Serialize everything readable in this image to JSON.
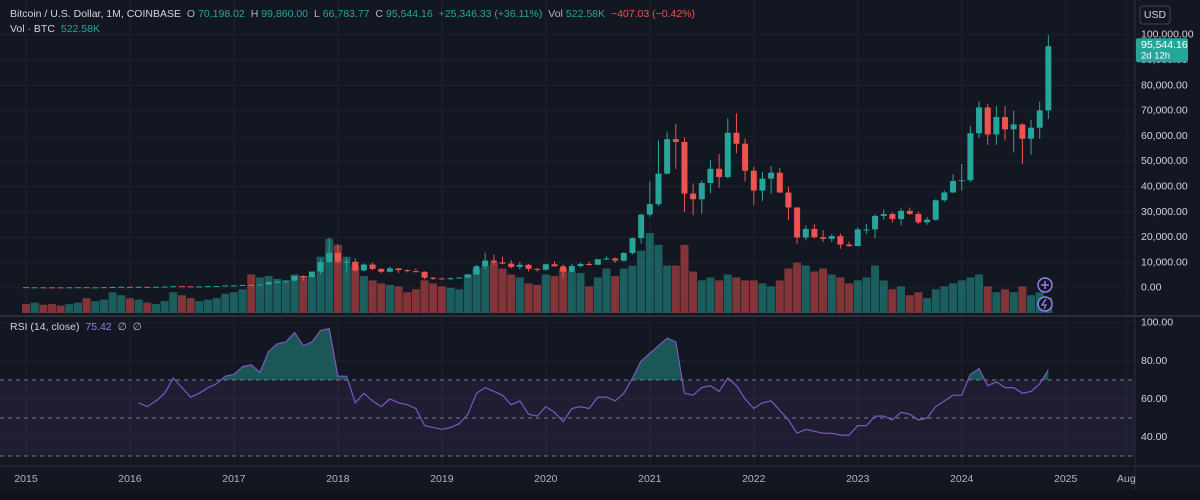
{
  "chart_data": {
    "type": "candlestick",
    "title": "Bitcoin / U.S. Dollar, 1M, COINBASE",
    "legend": {
      "ohlc": [
        {
          "key": "O",
          "value": "70,198.02"
        },
        {
          "key": "H",
          "value": "99,860.00"
        },
        {
          "key": "L",
          "value": "66,783.77"
        },
        {
          "key": "C",
          "value": "95,544.16"
        }
      ],
      "change": "+25,346.33 (+36.11%)",
      "vol_key": "Vol",
      "vol_value": "522.58K",
      "vol_change": "−407.03 (−0.42%)",
      "volume_title": "Vol · BTC",
      "volume_value": "522.58K"
    },
    "currency": "USD",
    "last_price_label": "95,544.16",
    "countdown": "2d 12h",
    "up_color": "#26a69a",
    "down_color": "#ef5350",
    "x": [
      "2015-01",
      "2015-02",
      "2015-03",
      "2015-04",
      "2015-05",
      "2015-06",
      "2015-07",
      "2015-08",
      "2015-09",
      "2015-10",
      "2015-11",
      "2015-12",
      "2016-01",
      "2016-02",
      "2016-03",
      "2016-04",
      "2016-05",
      "2016-06",
      "2016-07",
      "2016-08",
      "2016-09",
      "2016-10",
      "2016-11",
      "2016-12",
      "2017-01",
      "2017-02",
      "2017-03",
      "2017-04",
      "2017-05",
      "2017-06",
      "2017-07",
      "2017-08",
      "2017-09",
      "2017-10",
      "2017-11",
      "2017-12",
      "2018-01",
      "2018-02",
      "2018-03",
      "2018-04",
      "2018-05",
      "2018-06",
      "2018-07",
      "2018-08",
      "2018-09",
      "2018-10",
      "2018-11",
      "2018-12",
      "2019-01",
      "2019-02",
      "2019-03",
      "2019-04",
      "2019-05",
      "2019-06",
      "2019-07",
      "2019-08",
      "2019-09",
      "2019-10",
      "2019-11",
      "2019-12",
      "2020-01",
      "2020-02",
      "2020-03",
      "2020-04",
      "2020-05",
      "2020-06",
      "2020-07",
      "2020-08",
      "2020-09",
      "2020-10",
      "2020-11",
      "2020-12",
      "2021-01",
      "2021-02",
      "2021-03",
      "2021-04",
      "2021-05",
      "2021-06",
      "2021-07",
      "2021-08",
      "2021-09",
      "2021-10",
      "2021-11",
      "2021-12",
      "2022-01",
      "2022-02",
      "2022-03",
      "2022-04",
      "2022-05",
      "2022-06",
      "2022-07",
      "2022-08",
      "2022-09",
      "2022-10",
      "2022-11",
      "2022-12",
      "2023-01",
      "2023-02",
      "2023-03",
      "2023-04",
      "2023-05",
      "2023-06",
      "2023-07",
      "2023-08",
      "2023-09",
      "2023-10",
      "2023-11",
      "2023-12",
      "2024-01",
      "2024-02",
      "2024-03",
      "2024-04",
      "2024-05",
      "2024-06",
      "2024-07",
      "2024-08",
      "2024-09",
      "2024-10",
      "2024-11"
    ],
    "open": [
      320,
      217,
      254,
      244,
      236,
      230,
      263,
      284,
      230,
      236,
      314,
      378,
      430,
      368,
      437,
      416,
      448,
      531,
      673,
      624,
      575,
      609,
      698,
      742,
      963,
      970,
      1190,
      1080,
      1348,
      2300,
      2480,
      2875,
      4703,
      4338,
      6468,
      10233,
      13860,
      10265,
      10333,
      6928,
      9245,
      7500,
      6400,
      7730,
      7030,
      6630,
      6370,
      4040,
      3740,
      3460,
      3820,
      4100,
      5320,
      8570,
      10820,
      10090,
      9590,
      8300,
      9150,
      7550,
      7190,
      9350,
      8540,
      6420,
      8630,
      9450,
      9140,
      11350,
      11650,
      10780,
      13800,
      19700,
      28990,
      33110,
      45160,
      58800,
      57700,
      37300,
      35040,
      41460,
      47100,
      43820,
      61300,
      57000,
      46300,
      38480,
      43190,
      45540,
      37700,
      31790,
      19940,
      23300,
      20050,
      19420,
      20490,
      17160,
      16540,
      23130,
      23140,
      28470,
      29250,
      27200,
      30470,
      29230,
      25940,
      26970,
      34650,
      37720,
      42280,
      42580,
      61130,
      71330,
      60640,
      67530,
      62680,
      64620,
      58970,
      63330,
      70198.02
    ],
    "high": [
      320,
      265,
      300,
      261,
      247,
      268,
      315,
      284,
      244,
      333,
      495,
      465,
      462,
      443,
      439,
      467,
      553,
      780,
      704,
      625,
      617,
      738,
      752,
      980,
      1160,
      1210,
      1350,
      1365,
      2760,
      3000,
      2920,
      4750,
      5000,
      6470,
      11400,
      19890,
      17250,
      11790,
      11680,
      9760,
      9990,
      7780,
      8500,
      7760,
      7400,
      7680,
      6560,
      4310,
      4080,
      4200,
      4300,
      5620,
      9080,
      13870,
      13130,
      12330,
      10950,
      10370,
      9520,
      7880,
      9570,
      10500,
      9190,
      9460,
      10080,
      10400,
      11450,
      12470,
      12070,
      14100,
      19900,
      29300,
      42000,
      58350,
      61780,
      64900,
      59500,
      41330,
      42400,
      50500,
      52920,
      67000,
      69000,
      59100,
      47990,
      45800,
      48200,
      47450,
      40000,
      31900,
      24670,
      25200,
      22800,
      21100,
      21480,
      18400,
      23960,
      25250,
      29200,
      31000,
      29800,
      31450,
      31800,
      30180,
      28000,
      35000,
      38420,
      45000,
      48970,
      64000,
      73800,
      72800,
      71950,
      72000,
      70000,
      65100,
      66500,
      73600,
      99860
    ],
    "low": [
      152,
      212,
      237,
      215,
      228,
      220,
      254,
      199,
      225,
      236,
      309,
      350,
      352,
      366,
      394,
      414,
      435,
      522,
      615,
      464,
      592,
      603,
      690,
      740,
      752,
      920,
      890,
      1080,
      1400,
      2100,
      1840,
      2650,
      2970,
      4100,
      5500,
      10000,
      9050,
      6000,
      6440,
      6580,
      7000,
      5780,
      6070,
      5880,
      6120,
      6170,
      3450,
      3130,
      3350,
      3370,
      3730,
      4080,
      5320,
      7460,
      9070,
      9340,
      7700,
      7300,
      6520,
      6420,
      6860,
      8420,
      3800,
      6150,
      8130,
      8900,
      9010,
      11000,
      9880,
      10380,
      13200,
      17550,
      28130,
      32300,
      45000,
      47000,
      30000,
      28800,
      29280,
      37400,
      39600,
      43300,
      53250,
      42000,
      32900,
      34300,
      37200,
      37600,
      26700,
      17600,
      18780,
      19520,
      18150,
      18130,
      15480,
      16260,
      16500,
      21400,
      19550,
      26950,
      25850,
      24750,
      28860,
      25160,
      24920,
      26540,
      34100,
      37600,
      38500,
      41900,
      59200,
      56500,
      56550,
      58400,
      53500,
      49000,
      52550,
      58900,
      66783.77
    ],
    "close": [
      217,
      254,
      244,
      236,
      230,
      263,
      284,
      230,
      236,
      314,
      378,
      430,
      368,
      437,
      416,
      448,
      531,
      673,
      624,
      575,
      609,
      698,
      742,
      963,
      970,
      1190,
      1080,
      1348,
      2300,
      2480,
      2875,
      4703,
      4338,
      6468,
      10233,
      13860,
      10265,
      10333,
      6928,
      9245,
      7500,
      6400,
      7730,
      7030,
      6630,
      6370,
      4040,
      3740,
      3460,
      3820,
      4100,
      5320,
      8570,
      10820,
      10090,
      9590,
      8300,
      9150,
      7550,
      7190,
      9350,
      8540,
      6420,
      8630,
      9450,
      9140,
      11350,
      11650,
      10780,
      13800,
      19700,
      28990,
      33110,
      45160,
      58800,
      57700,
      37300,
      35040,
      41460,
      47100,
      43820,
      61300,
      57000,
      46300,
      38480,
      43190,
      45540,
      37700,
      31790,
      19940,
      23300,
      20050,
      19420,
      20490,
      17160,
      16540,
      23130,
      23140,
      28470,
      29250,
      27200,
      30470,
      29230,
      25940,
      26970,
      34650,
      37720,
      42280,
      42580,
      61130,
      71330,
      60640,
      67530,
      62680,
      64620,
      58970,
      63330,
      70200,
      95544.16
    ],
    "volume": [
      300,
      350,
      280,
      300,
      250,
      300,
      350,
      500,
      400,
      450,
      700,
      600,
      500,
      450,
      350,
      300,
      400,
      700,
      600,
      500,
      400,
      450,
      500,
      650,
      700,
      800,
      1300,
      1200,
      1250,
      1150,
      1100,
      1300,
      1250,
      1250,
      1900,
      2500,
      2300,
      1900,
      1600,
      1250,
      1100,
      1000,
      950,
      900,
      700,
      800,
      1100,
      1000,
      900,
      850,
      800,
      1300,
      1500,
      1600,
      1700,
      1500,
      1300,
      1200,
      1000,
      950,
      1300,
      1250,
      1500,
      1400,
      1350,
      900,
      1200,
      1500,
      1250,
      1500,
      1600,
      2100,
      2700,
      2300,
      1600,
      1600,
      2300,
      1400,
      1100,
      1200,
      1100,
      1300,
      1200,
      1100,
      1100,
      1000,
      900,
      1100,
      1500,
      1700,
      1600,
      1400,
      1500,
      1300,
      1200,
      1000,
      1100,
      1200,
      1600,
      1100,
      800,
      900,
      600,
      700,
      500,
      800,
      900,
      1000,
      1100,
      1200,
      1300,
      900,
      700,
      800,
      700,
      900,
      600,
      700,
      522.58
    ],
    "xlim": [
      "2014-10",
      "2025-09"
    ],
    "xticks": [
      {
        "value": "2015-01",
        "label": "2015"
      },
      {
        "value": "2016-01",
        "label": "2016"
      },
      {
        "value": "2017-01",
        "label": "2017"
      },
      {
        "value": "2018-01",
        "label": "2018"
      },
      {
        "value": "2019-01",
        "label": "2019"
      },
      {
        "value": "2020-01",
        "label": "2020"
      },
      {
        "value": "2021-01",
        "label": "2021"
      },
      {
        "value": "2022-01",
        "label": "2022"
      },
      {
        "value": "2023-01",
        "label": "2023"
      },
      {
        "value": "2024-01",
        "label": "2024"
      },
      {
        "value": "2025-01",
        "label": "2025"
      },
      {
        "value": "2025-08",
        "label": "Aug"
      }
    ],
    "ylim": [
      -10700,
      113800
    ],
    "yticks": [
      {
        "value": 0,
        "label": "0.00"
      },
      {
        "value": 10000,
        "label": "10,000.00"
      },
      {
        "value": 20000,
        "label": "20,000.00"
      },
      {
        "value": 30000,
        "label": "30,000.00"
      },
      {
        "value": 40000,
        "label": "40,000.00"
      },
      {
        "value": 50000,
        "label": "50,000.00"
      },
      {
        "value": 60000,
        "label": "60,000.00"
      },
      {
        "value": 70000,
        "label": "70,000.00"
      },
      {
        "value": 80000,
        "label": "80,000.00"
      },
      {
        "value": 90000,
        "label": "90,000.00"
      },
      {
        "value": 100000,
        "label": "100,000.00"
      }
    ],
    "grid": true,
    "rsi": {
      "title": "RSI (14, close)",
      "value_label": "75.42",
      "extras": [
        "∅",
        "∅"
      ],
      "color": "#7e57c2",
      "values": [
        null,
        null,
        null,
        null,
        null,
        null,
        null,
        null,
        null,
        null,
        null,
        null,
        null,
        58,
        56,
        59,
        63,
        71,
        66,
        61,
        63,
        66,
        68,
        72,
        73,
        77,
        78,
        74,
        85,
        89,
        90,
        95,
        88,
        90,
        96,
        97,
        72,
        72,
        58,
        63,
        59,
        56,
        60,
        58,
        57,
        55,
        46,
        45,
        44,
        45,
        47,
        52,
        63,
        66,
        64,
        62,
        57,
        59,
        52,
        51,
        56,
        53,
        48,
        55,
        56,
        55,
        61,
        61,
        59,
        63,
        71,
        80,
        84,
        88,
        92,
        90,
        63,
        62,
        66,
        67,
        64,
        71,
        67,
        60,
        55,
        58,
        59,
        54,
        49,
        42,
        44,
        43,
        42,
        42,
        41,
        41,
        46,
        46,
        51,
        51,
        49,
        53,
        52,
        49,
        50,
        56,
        59,
        62,
        62,
        73,
        76,
        67,
        69,
        66,
        66,
        63,
        64,
        68,
        75.42
      ],
      "ylim": [
        25.3,
        102.6
      ],
      "yticks": [
        {
          "value": 40,
          "label": "40.00"
        },
        {
          "value": 60,
          "label": "60.00"
        },
        {
          "value": 80,
          "label": "80.00"
        },
        {
          "value": 100,
          "label": "100.00"
        }
      ],
      "levels": [
        30,
        50,
        70
      ]
    }
  }
}
